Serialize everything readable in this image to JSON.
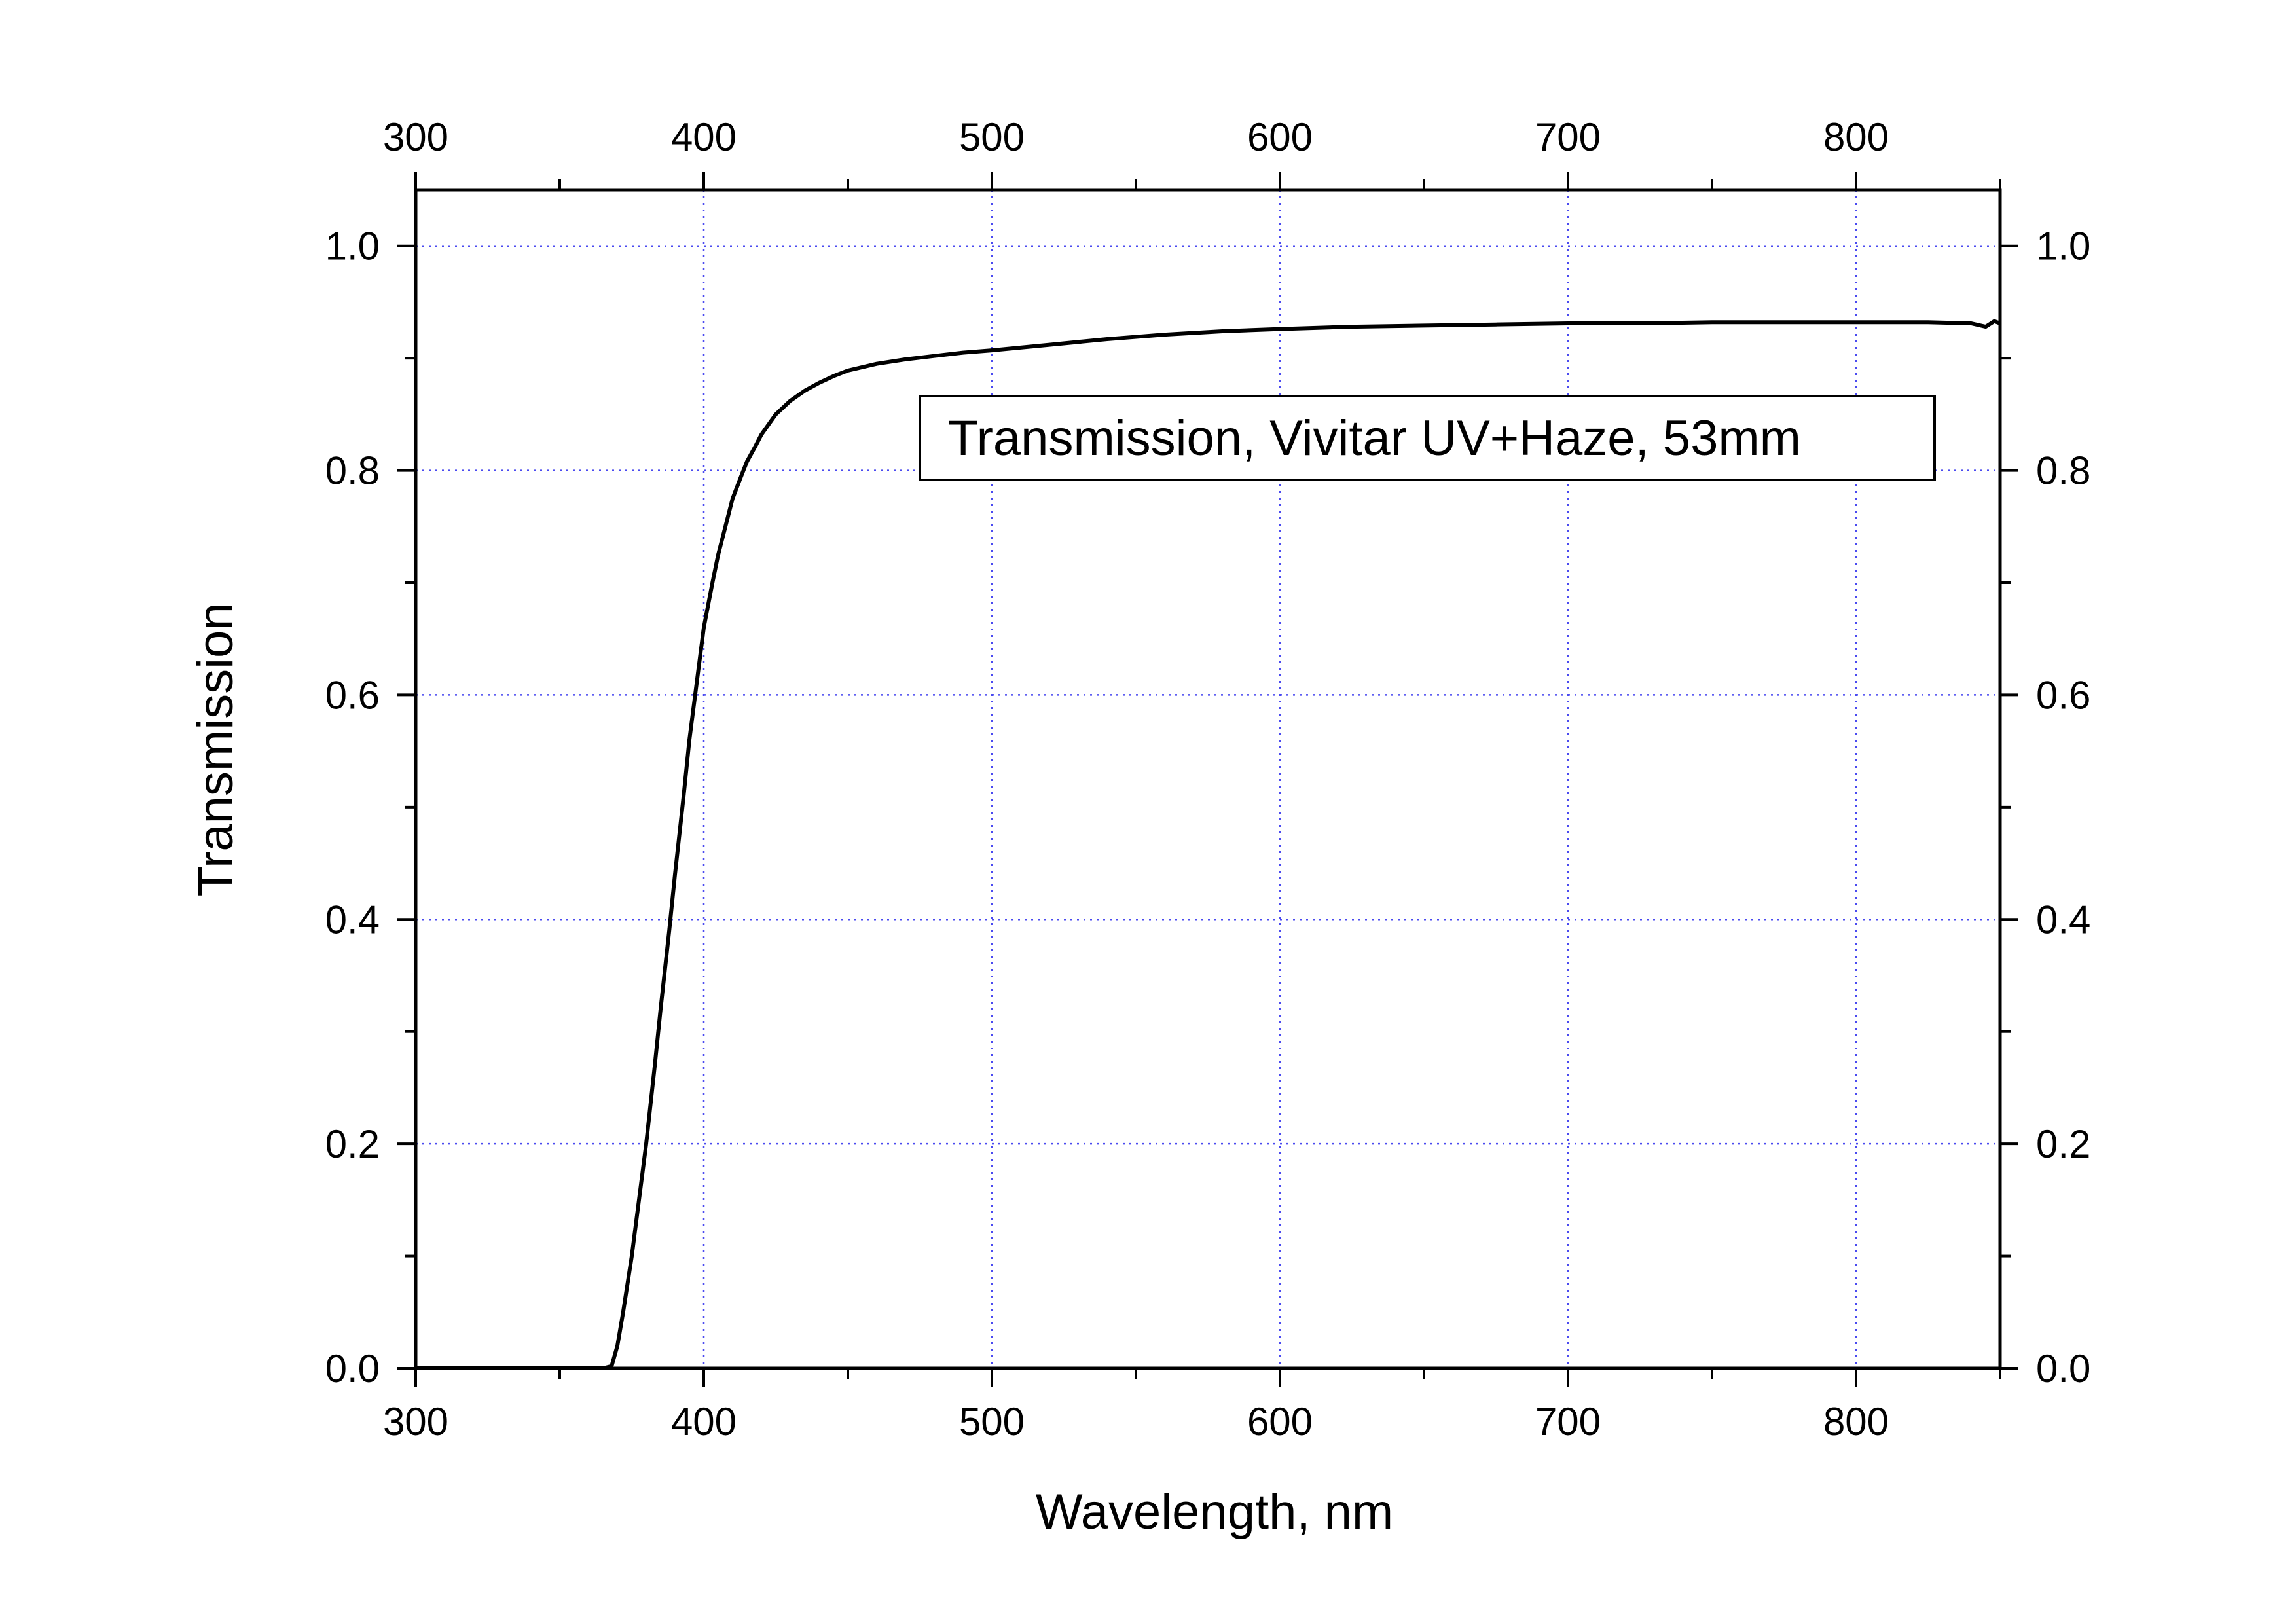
{
  "chart_data": {
    "type": "line",
    "title": "",
    "xlabel": "Wavelength, nm",
    "ylabel": "Transmission",
    "xlim": [
      300,
      850
    ],
    "ylim": [
      0.0,
      1.05
    ],
    "x_ticks": [
      300,
      400,
      500,
      600,
      700,
      800
    ],
    "x_tick_labels": [
      "300",
      "400",
      "500",
      "600",
      "700",
      "800"
    ],
    "top_x_tick_labels": [
      "300",
      "400",
      "500",
      "600",
      "700",
      "800"
    ],
    "y_ticks": [
      0.0,
      0.2,
      0.4,
      0.6,
      0.8,
      1.0
    ],
    "y_tick_labels": [
      "0.0",
      "0.2",
      "0.4",
      "0.6",
      "0.8",
      "1.0"
    ],
    "right_y_tick_labels": [
      "0.0",
      "0.2",
      "0.4",
      "0.6",
      "0.8",
      "1.0"
    ],
    "grid": true,
    "grid_color": "#4a4af0",
    "legend_position": "upper-right",
    "series": [
      {
        "label_in_box": "Transmission, Vivitar UV+Haze, 53mm",
        "color": "#000000",
        "x": [
          300,
          350,
          365,
          368,
          370,
          372,
          375,
          378,
          380,
          383,
          385,
          388,
          390,
          393,
          395,
          398,
          400,
          403,
          405,
          408,
          410,
          413,
          415,
          418,
          420,
          425,
          430,
          435,
          440,
          445,
          450,
          460,
          470,
          480,
          490,
          500,
          520,
          540,
          560,
          580,
          600,
          625,
          650,
          675,
          700,
          725,
          750,
          775,
          800,
          825,
          840,
          845,
          848,
          850
        ],
        "y": [
          0.0,
          0.0,
          0.0,
          0.002,
          0.02,
          0.05,
          0.1,
          0.16,
          0.2,
          0.27,
          0.32,
          0.39,
          0.44,
          0.51,
          0.56,
          0.62,
          0.66,
          0.7,
          0.725,
          0.755,
          0.775,
          0.795,
          0.808,
          0.822,
          0.832,
          0.85,
          0.862,
          0.871,
          0.878,
          0.884,
          0.889,
          0.895,
          0.899,
          0.902,
          0.905,
          0.907,
          0.912,
          0.917,
          0.921,
          0.924,
          0.926,
          0.928,
          0.929,
          0.93,
          0.931,
          0.931,
          0.932,
          0.932,
          0.932,
          0.932,
          0.931,
          0.928,
          0.933,
          0.931
        ]
      }
    ]
  }
}
